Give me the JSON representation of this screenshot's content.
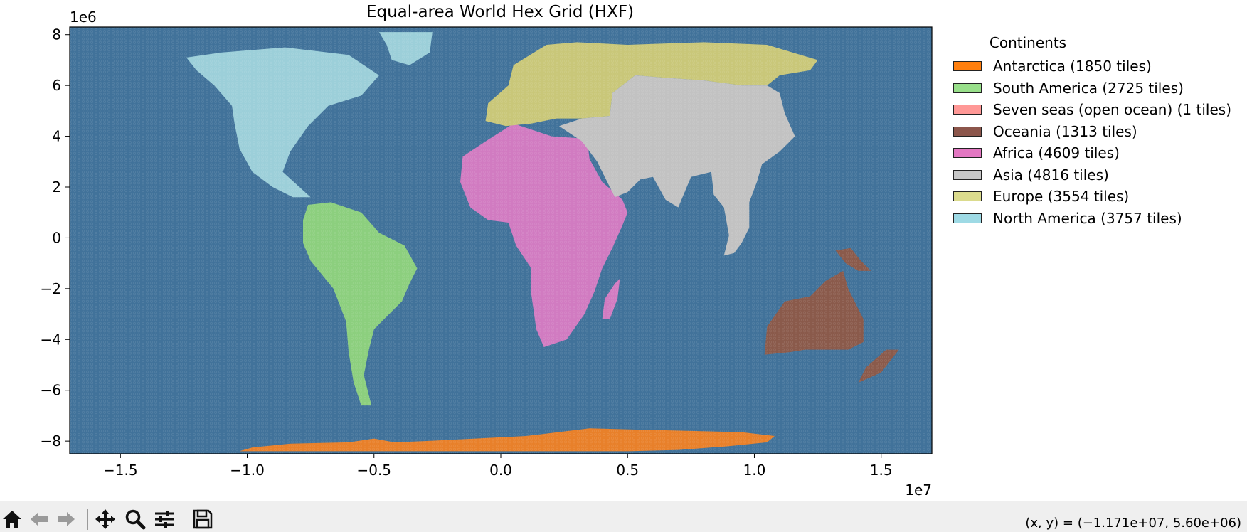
{
  "chart_data": {
    "type": "map",
    "title": "Equal-area World Hex Grid (HXF)",
    "xlim": [
      -17000000,
      17000000
    ],
    "ylim": [
      -8500000,
      8300000
    ],
    "x_ticks": [
      -15000000,
      -10000000,
      -5000000,
      0,
      5000000,
      10000000,
      15000000
    ],
    "x_tick_labels": [
      "−1.5",
      "−1.0",
      "−0.5",
      "0.0",
      "0.5",
      "1.0",
      "1.5"
    ],
    "x_offset_label": "1e7",
    "y_ticks": [
      8000000,
      6000000,
      4000000,
      2000000,
      0,
      -2000000,
      -4000000,
      -6000000,
      -8000000
    ],
    "y_tick_labels": [
      "8",
      "6",
      "4",
      "2",
      "0",
      "−2",
      "−4",
      "−6",
      "−8"
    ],
    "y_offset_label": "1e6",
    "ocean_color": "#41729a",
    "legend": {
      "title": "Continents",
      "placement": "right",
      "items": [
        {
          "label": "Antarctica (1850 tiles)",
          "color": "#ff7f0e"
        },
        {
          "label": "South America (2725 tiles)",
          "color": "#98df8a"
        },
        {
          "label": "Seven seas (open ocean) (1 tiles)",
          "color": "#ff9896"
        },
        {
          "label": "Oceania (1313 tiles)",
          "color": "#8c564b"
        },
        {
          "label": "Africa (4609 tiles)",
          "color": "#e377c2"
        },
        {
          "label": "Asia (4816 tiles)",
          "color": "#c7c7c7"
        },
        {
          "label": "Europe (3554 tiles)",
          "color": "#dbdb8d"
        },
        {
          "label": "North America (3757 tiles)",
          "color": "#9edae5"
        }
      ]
    },
    "regions": [
      {
        "name": "Antarctica",
        "color": "#e8802a",
        "points": [
          [
            -10300000,
            -8400000
          ],
          [
            -9800000,
            -8250000
          ],
          [
            -8300000,
            -8100000
          ],
          [
            -6000000,
            -8050000
          ],
          [
            -5000000,
            -7900000
          ],
          [
            -4200000,
            -8050000
          ],
          [
            -3000000,
            -8000000
          ],
          [
            -1000000,
            -7900000
          ],
          [
            1000000,
            -7800000
          ],
          [
            3500000,
            -7500000
          ],
          [
            5500000,
            -7550000
          ],
          [
            7500000,
            -7600000
          ],
          [
            9500000,
            -7650000
          ],
          [
            10800000,
            -7800000
          ],
          [
            10500000,
            -8050000
          ],
          [
            9000000,
            -8200000
          ],
          [
            7000000,
            -8350000
          ],
          [
            5000000,
            -8400000
          ],
          [
            2000000,
            -8400000
          ],
          [
            -3000000,
            -8400000
          ],
          [
            -8000000,
            -8400000
          ]
        ]
      },
      {
        "name": "South America",
        "color": "#8ccf7e",
        "points": [
          [
            -7600000,
            1300000
          ],
          [
            -6700000,
            1400000
          ],
          [
            -5500000,
            1000000
          ],
          [
            -4800000,
            200000
          ],
          [
            -3800000,
            -300000
          ],
          [
            -3300000,
            -1200000
          ],
          [
            -3600000,
            -1800000
          ],
          [
            -3900000,
            -2500000
          ],
          [
            -4500000,
            -3100000
          ],
          [
            -5000000,
            -3600000
          ],
          [
            -5200000,
            -4400000
          ],
          [
            -5400000,
            -5400000
          ],
          [
            -5200000,
            -6200000
          ],
          [
            -5100000,
            -6600000
          ],
          [
            -5500000,
            -6600000
          ],
          [
            -5800000,
            -5700000
          ],
          [
            -6000000,
            -4500000
          ],
          [
            -6100000,
            -3300000
          ],
          [
            -6600000,
            -2000000
          ],
          [
            -7500000,
            -900000
          ],
          [
            -7800000,
            -200000
          ],
          [
            -7800000,
            700000
          ]
        ]
      },
      {
        "name": "Africa",
        "color": "#d17bc1",
        "points": [
          [
            -1500000,
            3200000
          ],
          [
            -600000,
            3800000
          ],
          [
            500000,
            4500000
          ],
          [
            2000000,
            4000000
          ],
          [
            3400000,
            3900000
          ],
          [
            3500000,
            3100000
          ],
          [
            4000000,
            2200000
          ],
          [
            4800000,
            1500000
          ],
          [
            5000000,
            1000000
          ],
          [
            4800000,
            500000
          ],
          [
            4400000,
            -400000
          ],
          [
            4000000,
            -1200000
          ],
          [
            3700000,
            -2100000
          ],
          [
            3300000,
            -3000000
          ],
          [
            2600000,
            -4000000
          ],
          [
            1700000,
            -4300000
          ],
          [
            1400000,
            -3600000
          ],
          [
            1200000,
            -2200000
          ],
          [
            1200000,
            -1200000
          ],
          [
            600000,
            -300000
          ],
          [
            300000,
            600000
          ],
          [
            -500000,
            700000
          ],
          [
            -1200000,
            1200000
          ],
          [
            -1600000,
            2200000
          ]
        ]
      },
      {
        "name": "Madagascar",
        "color": "#d17bc1",
        "points": [
          [
            4500000,
            -1800000
          ],
          [
            4700000,
            -1600000
          ],
          [
            4600000,
            -2400000
          ],
          [
            4300000,
            -3200000
          ],
          [
            4000000,
            -3200000
          ],
          [
            4100000,
            -2400000
          ]
        ]
      },
      {
        "name": "Europe",
        "color": "#c9c779",
        "points": [
          [
            -600000,
            4600000
          ],
          [
            -500000,
            5300000
          ],
          [
            300000,
            6000000
          ],
          [
            500000,
            6800000
          ],
          [
            1800000,
            7600000
          ],
          [
            3000000,
            7700000
          ],
          [
            5000000,
            7600000
          ],
          [
            8000000,
            7700000
          ],
          [
            10500000,
            7600000
          ],
          [
            12500000,
            7000000
          ],
          [
            12200000,
            6600000
          ],
          [
            11000000,
            6400000
          ],
          [
            10500000,
            6000000
          ],
          [
            9500000,
            6000000
          ],
          [
            8000000,
            6200000
          ],
          [
            6500000,
            6300000
          ],
          [
            5300000,
            6400000
          ],
          [
            4400000,
            5700000
          ],
          [
            4300000,
            4800000
          ],
          [
            3200000,
            4700000
          ],
          [
            2200000,
            4700000
          ],
          [
            1200000,
            4500000
          ],
          [
            200000,
            4400000
          ]
        ]
      },
      {
        "name": "Asia",
        "color": "#c2c2c2",
        "points": [
          [
            4300000,
            4800000
          ],
          [
            4400000,
            5700000
          ],
          [
            5300000,
            6400000
          ],
          [
            6500000,
            6300000
          ],
          [
            8000000,
            6200000
          ],
          [
            9500000,
            6000000
          ],
          [
            10500000,
            6000000
          ],
          [
            11000000,
            5700000
          ],
          [
            11200000,
            4900000
          ],
          [
            11600000,
            4000000
          ],
          [
            11000000,
            3400000
          ],
          [
            10300000,
            2900000
          ],
          [
            10100000,
            2200000
          ],
          [
            9800000,
            1400000
          ],
          [
            9800000,
            400000
          ],
          [
            9500000,
            -200000
          ],
          [
            9200000,
            -600000
          ],
          [
            8800000,
            -700000
          ],
          [
            9000000,
            100000
          ],
          [
            8800000,
            1200000
          ],
          [
            8400000,
            1700000
          ],
          [
            8300000,
            2600000
          ],
          [
            7500000,
            2400000
          ],
          [
            7000000,
            1200000
          ],
          [
            6500000,
            1500000
          ],
          [
            6000000,
            2400000
          ],
          [
            5500000,
            2300000
          ],
          [
            5000000,
            1800000
          ],
          [
            4500000,
            1600000
          ],
          [
            3800000,
            3000000
          ],
          [
            3200000,
            3800000
          ],
          [
            2300000,
            4400000
          ],
          [
            3200000,
            4700000
          ]
        ]
      },
      {
        "name": "North America",
        "color": "#9ccfd9",
        "points": [
          [
            -11000000,
            7300000
          ],
          [
            -8500000,
            7500000
          ],
          [
            -6000000,
            7200000
          ],
          [
            -4800000,
            6400000
          ],
          [
            -5500000,
            5600000
          ],
          [
            -6800000,
            5200000
          ],
          [
            -7600000,
            4400000
          ],
          [
            -8300000,
            3400000
          ],
          [
            -8600000,
            2600000
          ],
          [
            -7500000,
            1600000
          ],
          [
            -8200000,
            1600000
          ],
          [
            -9000000,
            2000000
          ],
          [
            -9800000,
            2600000
          ],
          [
            -10300000,
            3500000
          ],
          [
            -10500000,
            4500000
          ],
          [
            -10600000,
            5200000
          ],
          [
            -11300000,
            6000000
          ],
          [
            -12000000,
            6600000
          ],
          [
            -12400000,
            7100000
          ]
        ]
      },
      {
        "name": "Greenland",
        "color": "#9ccfd9",
        "points": [
          [
            -4800000,
            8100000
          ],
          [
            -2700000,
            8100000
          ],
          [
            -2800000,
            7300000
          ],
          [
            -3600000,
            6800000
          ],
          [
            -4300000,
            7000000
          ],
          [
            -4500000,
            7600000
          ]
        ]
      },
      {
        "name": "Oceania",
        "color": "#8a5a4b",
        "points": [
          [
            10500000,
            -3500000
          ],
          [
            11200000,
            -2500000
          ],
          [
            12200000,
            -2300000
          ],
          [
            12800000,
            -1700000
          ],
          [
            13500000,
            -1300000
          ],
          [
            13700000,
            -2000000
          ],
          [
            14300000,
            -3200000
          ],
          [
            14300000,
            -4100000
          ],
          [
            13700000,
            -4400000
          ],
          [
            12800000,
            -4400000
          ],
          [
            12000000,
            -4400000
          ],
          [
            11400000,
            -4500000
          ],
          [
            10400000,
            -4600000
          ]
        ]
      },
      {
        "name": "New Guinea",
        "color": "#8a5a4b",
        "points": [
          [
            13200000,
            -500000
          ],
          [
            13800000,
            -400000
          ],
          [
            14200000,
            -900000
          ],
          [
            14600000,
            -1300000
          ],
          [
            14100000,
            -1300000
          ],
          [
            13600000,
            -1000000
          ]
        ]
      },
      {
        "name": "New Zealand",
        "color": "#8a5a4b",
        "points": [
          [
            15200000,
            -4400000
          ],
          [
            15700000,
            -4400000
          ],
          [
            15000000,
            -5300000
          ],
          [
            14100000,
            -5700000
          ],
          [
            14400000,
            -5100000
          ]
        ]
      }
    ]
  },
  "toolbar": {
    "coords_text": "(x, y) = (−1.171e+07, 5.60e+06)"
  }
}
